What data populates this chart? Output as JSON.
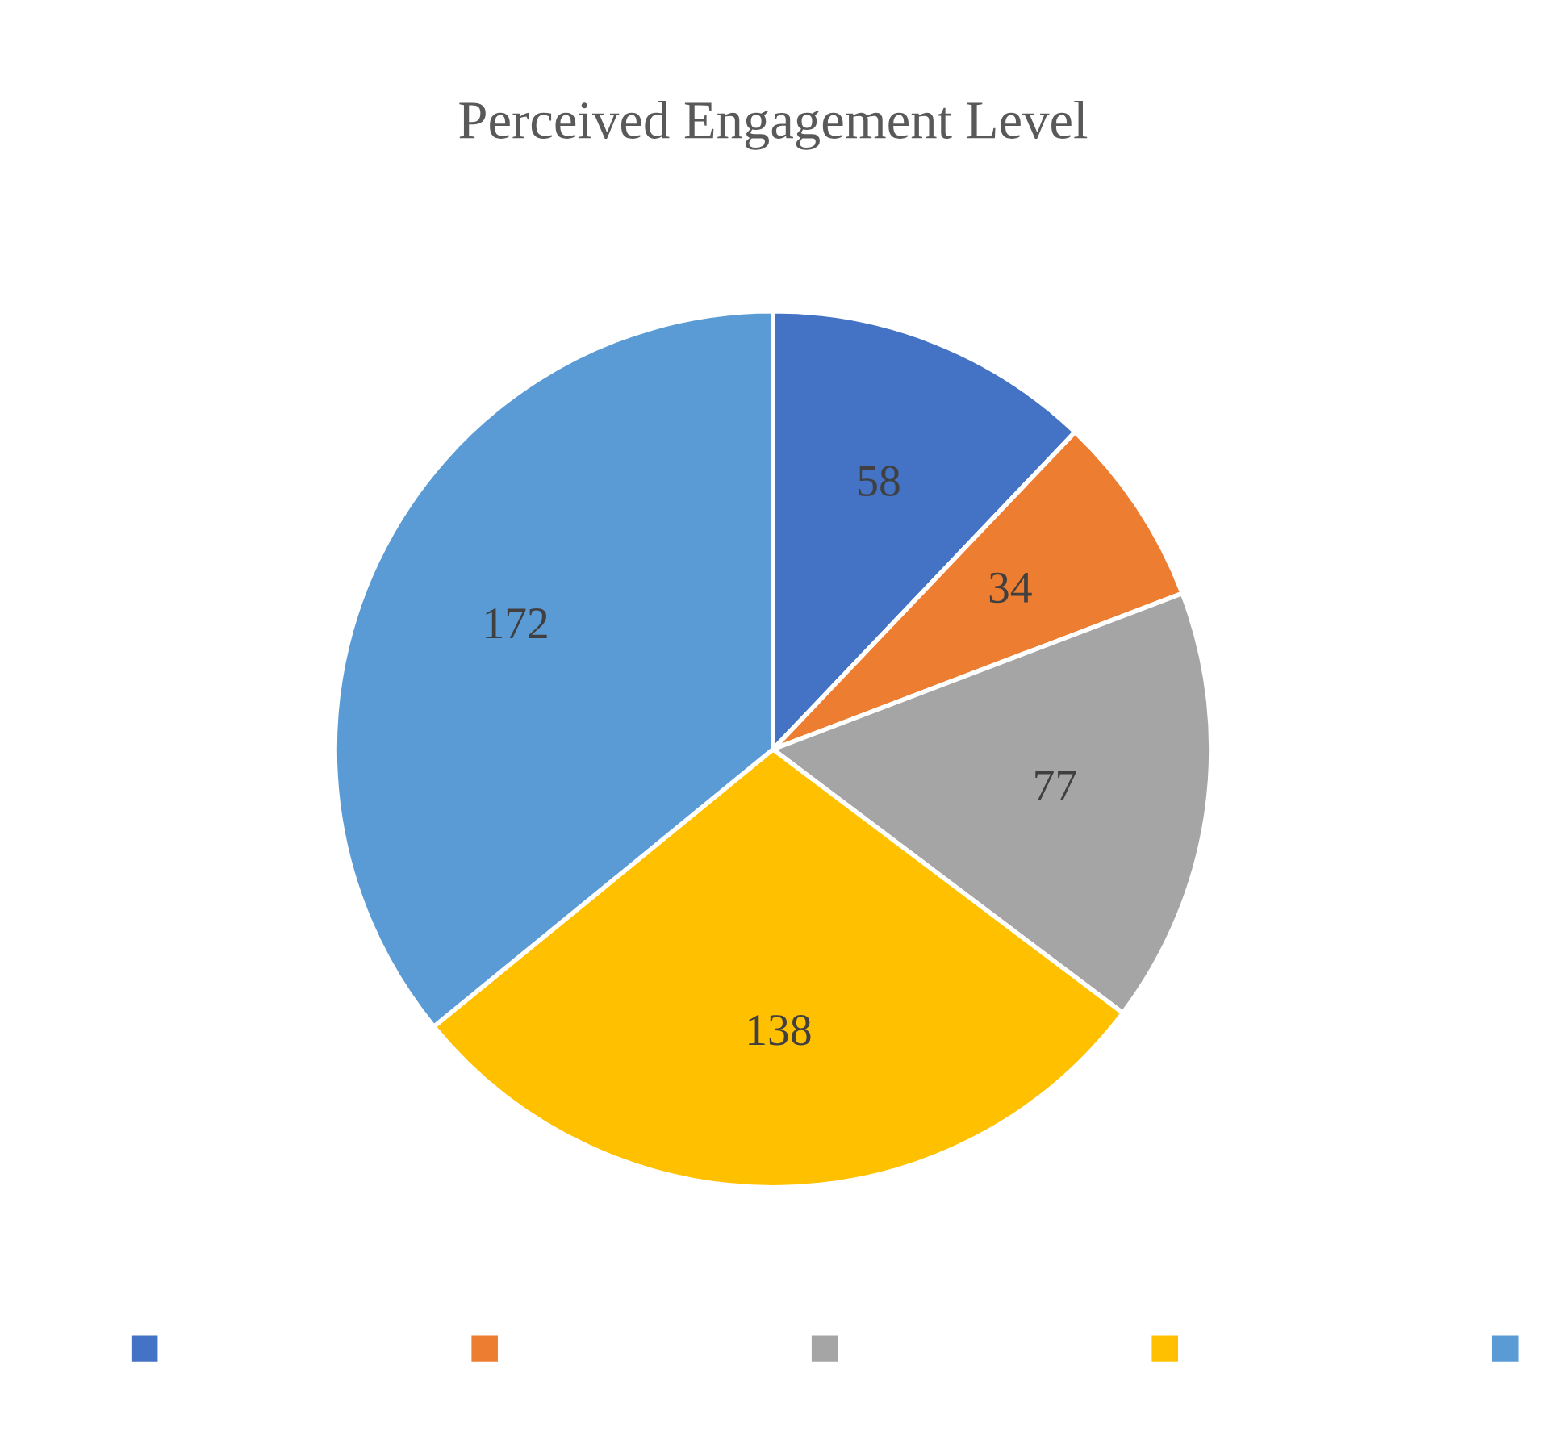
{
  "chart_data": {
    "type": "pie",
    "title": "Perceived Engagement Level",
    "categories": [
      null,
      null,
      null,
      null,
      null
    ],
    "values": [
      58,
      34,
      77,
      138,
      172
    ],
    "colors": [
      "#4472c4",
      "#ed7d31",
      "#a5a5a5",
      "#ffc000",
      "#5b9bd5"
    ],
    "data_labels": true
  }
}
